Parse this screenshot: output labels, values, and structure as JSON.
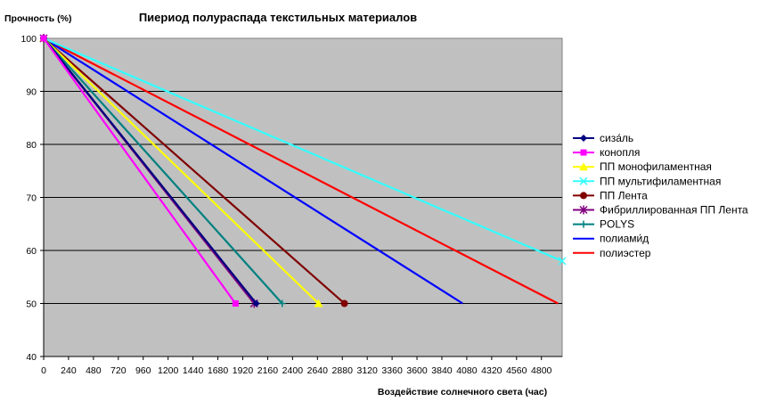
{
  "chart_data": {
    "type": "line",
    "title": "Пиериод полураспада текстильных материалов",
    "xlabel": "Воздействие солнечного света (час)",
    "ylabel": "Прочность (%)",
    "xlim": [
      0,
      5000
    ],
    "ylim": [
      40,
      100
    ],
    "x_ticks": [
      0,
      240,
      480,
      720,
      960,
      1200,
      1440,
      1680,
      1920,
      2160,
      2400,
      2640,
      2880,
      3120,
      3360,
      3600,
      3840,
      4080,
      4320,
      4560,
      4800
    ],
    "x_tick_labels": [
      "0",
      "240",
      "480",
      "720",
      "960",
      "1200",
      "1440",
      "1680",
      "1920",
      "2160",
      "2400",
      "2640",
      "2880",
      "3120",
      "3360",
      "3600",
      "3840",
      "4080",
      "4320",
      "4560",
      "4800"
    ],
    "y_ticks": [
      40,
      50,
      60,
      70,
      80,
      90,
      100
    ],
    "y_tick_labels": [
      "40",
      "50",
      "60",
      "70",
      "80",
      "90",
      "100"
    ],
    "grid": "horizontal",
    "plot_background": "#c0c0c0",
    "legend_position": "right",
    "series": [
      {
        "name": "сиза́ль",
        "color": "#000080",
        "marker": "diamond",
        "x": [
          0,
          2050
        ],
        "y": [
          100,
          50
        ]
      },
      {
        "name": "конопля",
        "color": "#ff00ff",
        "marker": "square",
        "x": [
          0,
          1850
        ],
        "y": [
          100,
          50
        ]
      },
      {
        "name": "ПП монофиламентная",
        "color": "#ffff00",
        "marker": "triangle",
        "x": [
          0,
          2650
        ],
        "y": [
          100,
          50
        ]
      },
      {
        "name": "ПП мультифиламентная",
        "color": "#33ffff",
        "marker": "x",
        "x": [
          0,
          5000
        ],
        "y": [
          100,
          58
        ]
      },
      {
        "name": "ПП Лента",
        "color": "#800000",
        "marker": "circle",
        "x": [
          0,
          2900
        ],
        "y": [
          100,
          50
        ]
      },
      {
        "name": "Фибриллированная ПП Лента",
        "color": "#800080",
        "marker": "star",
        "x": [
          0,
          2030
        ],
        "y": [
          100,
          50
        ]
      },
      {
        "name": "POLYS",
        "color": "#008080",
        "marker": "plus",
        "x": [
          0,
          2300
        ],
        "y": [
          100,
          50
        ]
      },
      {
        "name": "полиами́д",
        "color": "#0000ff",
        "marker": "none",
        "x": [
          0,
          4040
        ],
        "y": [
          100,
          50
        ]
      },
      {
        "name": "полиэстер",
        "color": "#ff0000",
        "marker": "none",
        "x": [
          0,
          4960
        ],
        "y": [
          100,
          50
        ]
      }
    ]
  }
}
